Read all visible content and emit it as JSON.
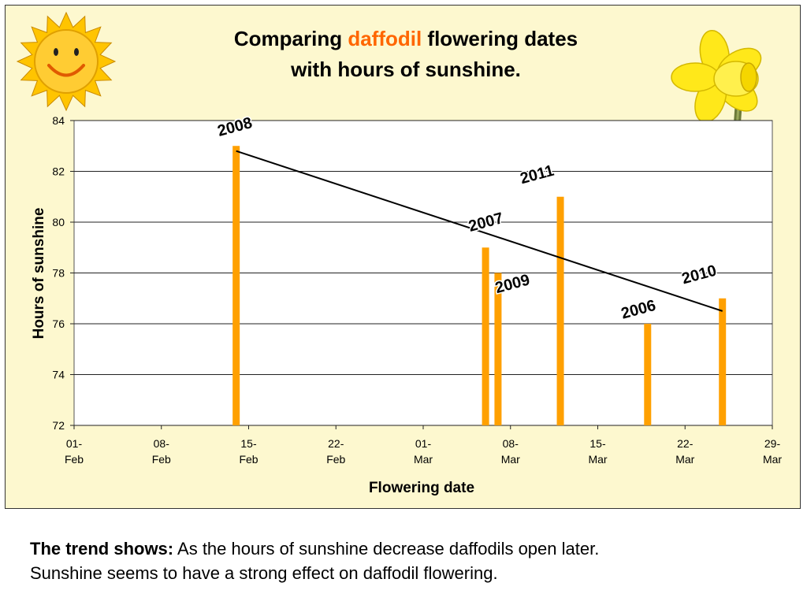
{
  "title": {
    "line1_before": "Comparing ",
    "line1_highlight": "daffodil",
    "line1_after": " flowering dates",
    "line2": "with hours of sunshine."
  },
  "caption": {
    "lead": "The trend shows:",
    "line1": "As the hours of sunshine decrease daffodils open later.",
    "line2": "Sunshine seems to have a strong effect on daffodil flowering."
  },
  "colors": {
    "panel_background": "#fdf8cf",
    "bar": "#ffa000",
    "highlight_text": "#ff6600",
    "trend_line": "#000000"
  },
  "decorations": [
    "sun-smiley-icon",
    "daffodil-flower-icon"
  ],
  "chart_data": {
    "type": "bar",
    "xlabel": "Flowering date",
    "ylabel": "Hours of sunshine",
    "ylim": [
      72,
      84
    ],
    "yticks": [
      72,
      74,
      76,
      78,
      80,
      82,
      84
    ],
    "xlim": [
      "01-Feb",
      "29-Mar"
    ],
    "xticks": [
      {
        "date": "01-Feb",
        "line1": "01-",
        "line2": "Feb"
      },
      {
        "date": "08-Feb",
        "line1": "08-",
        "line2": "Feb"
      },
      {
        "date": "15-Feb",
        "line1": "15-",
        "line2": "Feb"
      },
      {
        "date": "22-Feb",
        "line1": "22-",
        "line2": "Feb"
      },
      {
        "date": "01-Mar",
        "line1": "01-",
        "line2": "Mar"
      },
      {
        "date": "08-Mar",
        "line1": "08-",
        "line2": "Mar"
      },
      {
        "date": "15-Mar",
        "line1": "15-",
        "line2": "Mar"
      },
      {
        "date": "22-Mar",
        "line1": "22-",
        "line2": "Mar"
      },
      {
        "date": "29-Mar",
        "line1": "29-",
        "line2": "Mar"
      }
    ],
    "grid": true,
    "points": [
      {
        "year": "2008",
        "date": "14-Feb",
        "hours": 83
      },
      {
        "year": "2007",
        "date": "06-Mar",
        "hours": 79
      },
      {
        "year": "2009",
        "date": "07-Mar",
        "hours": 78
      },
      {
        "year": "2011",
        "date": "12-Mar",
        "hours": 81
      },
      {
        "year": "2006",
        "date": "19-Mar",
        "hours": 76
      },
      {
        "year": "2010",
        "date": "25-Mar",
        "hours": 77
      }
    ],
    "trendline": {
      "start": {
        "date": "14-Feb",
        "hours": 82.8
      },
      "end": {
        "date": "25-Mar",
        "hours": 76.5
      }
    }
  }
}
